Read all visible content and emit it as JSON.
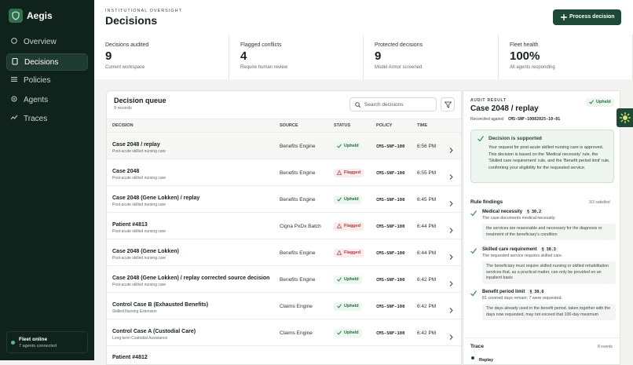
{
  "sidebar": {
    "brand": "Aegis",
    "nav": [
      "Overview",
      "Decisions",
      "Policies",
      "Agents",
      "Traces"
    ],
    "active": 1,
    "status_title": "Fleet online",
    "status_sub": "7 agents connected"
  },
  "header": {
    "eyebrow": "INSTITUTIONAL OVERSIGHT",
    "title": "Decisions",
    "button": "Process decision"
  },
  "stats": [
    {
      "label": "Decisions audited",
      "value": "9",
      "sub": "Current workspace"
    },
    {
      "label": "Flagged conflicts",
      "value": "4",
      "sub": "Require human review"
    },
    {
      "label": "Protected decisions",
      "value": "9",
      "sub": "Model Armor screened"
    },
    {
      "label": "Fleet health",
      "value": "100%",
      "sub": "All agents responding"
    }
  ],
  "queue": {
    "title": "Decision queue",
    "count": "9 records",
    "search": "Search decisions",
    "columns": [
      "DECISION",
      "SOURCE",
      "STATUS",
      "POLICY",
      "TIME"
    ],
    "rows": [
      {
        "title": "Case 2048 / replay",
        "sub": "Post-acute skilled nursing care",
        "source": "Benefits Engine",
        "status": "Upheld",
        "policy": "CMS-SNF-100",
        "time": "6:56 PM"
      },
      {
        "title": "Case 2048",
        "sub": "Post-acute skilled nursing care",
        "source": "Benefits Engine",
        "status": "Flagged",
        "policy": "CMS-SNF-100",
        "time": "6:55 PM"
      },
      {
        "title": "Case 2048 (Gene Lokken) / replay",
        "sub": "Post-acute skilled nursing care",
        "source": "Benefits Engine",
        "status": "Upheld",
        "policy": "CMS-SNF-100",
        "time": "6:45 PM"
      },
      {
        "title": "Patient #4813",
        "sub": "Post-acute skilled nursing care",
        "source": "Cigna PxDx Batch",
        "status": "Flagged",
        "policy": "CMS-SNF-100",
        "time": "6:44 PM"
      },
      {
        "title": "Case 2048 (Gene Lokken)",
        "sub": "Post-acute skilled nursing care",
        "source": "Benefits Engine",
        "status": "Flagged",
        "policy": "CMS-SNF-100",
        "time": "6:44 PM"
      },
      {
        "title": "Case 2048 (Gene Lokken) / replay corrected source decision",
        "sub": "Post-acute skilled nursing care",
        "source": "Benefits Engine",
        "status": "Upheld",
        "policy": "CMS-SNF-100",
        "time": "6:42 PM"
      },
      {
        "title": "Control Case B (Exhausted Benefits)",
        "sub": "Skilled Nursing Extension",
        "source": "Claims Engine",
        "status": "Upheld",
        "policy": "CMS-SNF-100",
        "time": "6:42 PM"
      },
      {
        "title": "Control Case A (Custodial Care)",
        "sub": "Long-term Custodial Assistance",
        "source": "Claims Engine",
        "status": "Upheld",
        "policy": "CMS-SNF-100",
        "time": "6:42 PM"
      },
      {
        "title": "Patient #4812"
      }
    ]
  },
  "audit": {
    "eyebrow": "AUDIT RESULT",
    "title": "Case 2048 / replay",
    "badge": "Upheld",
    "reconciled": "Reconciled against",
    "reconciled_id": "CMS-SNF-10082025-10-01",
    "summary_title": "Decision is supported",
    "summary": "Your request for post-acute skilled nursing care is approved. This decision is based on the 'Medical necessity' rule, the 'Skilled care requirement' rule, and the 'Benefit period limit' rule, confirming your eligibility for the requested service.",
    "findings_title": "Rule findings",
    "findings_count": "3/3 satisfied",
    "findings": [
      {
        "name": "Medical necessity",
        "ref": "§ 30.2",
        "note": "The case documents medical necessity.",
        "quote": "the services are reasonable and necessary for the diagnosis or treatment of the beneficiary's condition"
      },
      {
        "name": "Skilled care requirement",
        "ref": "§ 30.3",
        "note": "The requested service requires skilled care.",
        "quote": "The beneficiary must require skilled nursing or skilled rehabilitation services that, as a practical matter, can only be provided on an inpatient basis"
      },
      {
        "name": "Benefit period limit",
        "ref": "§ 30.6",
        "note": "81 covered days remain; 7 were requested.",
        "quote": "The days already used in the benefit period, taken together with the days now requested, may not exceed that 100-day maximum"
      }
    ],
    "trace_title": "Trace",
    "trace_count": "8 events",
    "trace_first": "Replay"
  }
}
